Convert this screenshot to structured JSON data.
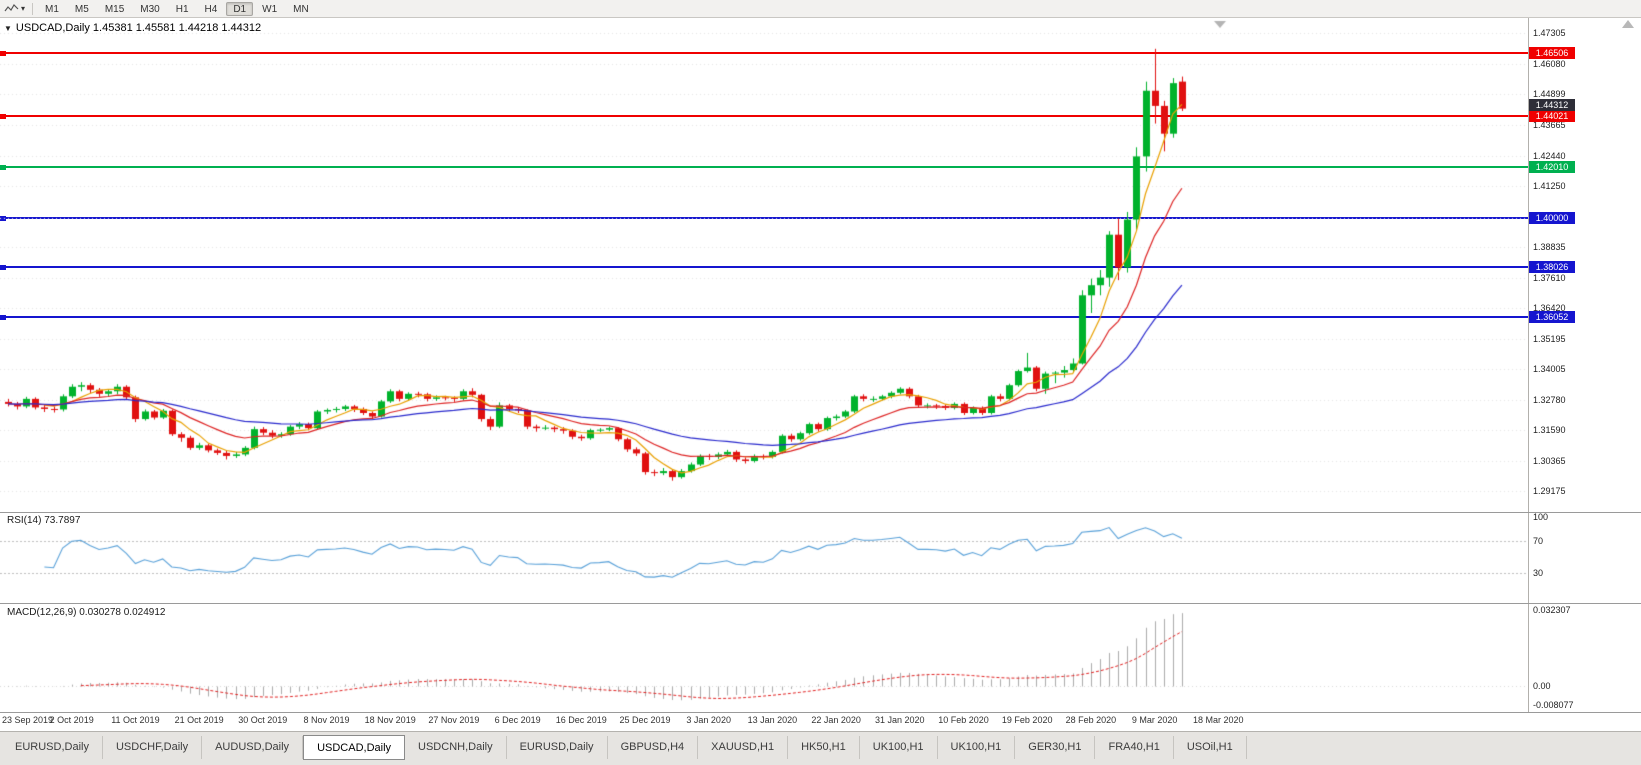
{
  "toolbar": {
    "timeframes": [
      "M1",
      "M5",
      "M15",
      "M30",
      "H1",
      "H4",
      "D1",
      "W1",
      "MN"
    ],
    "active_timeframe": "D1"
  },
  "chart": {
    "title": "USDCAD,Daily 1.45381 1.45581 1.44218 1.44312",
    "symbol": "USDCAD",
    "period": "Daily",
    "open": "1.45381",
    "high": "1.45581",
    "low": "1.44218",
    "close": "1.44312"
  },
  "price_axis": {
    "labels": [
      "1.47305",
      "1.46080",
      "1.44899",
      "1.43665",
      "1.42440",
      "1.41250",
      "1.40000",
      "1.38835",
      "1.37610",
      "1.36420",
      "1.35195",
      "1.34005",
      "1.32780",
      "1.31590",
      "1.30365",
      "1.29175"
    ]
  },
  "current_price_badge": {
    "text": "1.44312",
    "price": 1.44312,
    "bg": "#2e2e38"
  },
  "hlines": [
    {
      "price": 1.46506,
      "label": "1.46506",
      "color": "#f00000"
    },
    {
      "price": 1.44021,
      "label": "1.44021",
      "color": "#f00000"
    },
    {
      "price": 1.4201,
      "label": "1.42010",
      "color": "#00b050"
    },
    {
      "price": 1.4,
      "label": "1.40000",
      "color": "#1515cf"
    },
    {
      "price": 1.38026,
      "label": "1.38026",
      "color": "#1515cf"
    },
    {
      "price": 1.36052,
      "label": "1.36052",
      "color": "#1515cf"
    }
  ],
  "indicators": {
    "rsi": {
      "label": "RSI(14) 73.7897",
      "period": 14,
      "value": 73.7897,
      "axis_labels": [
        "100",
        "70",
        "30"
      ],
      "levels": [
        70,
        30
      ],
      "color": "#58a0d8"
    },
    "macd": {
      "label": "MACD(12,26,9) 0.030278 0.024912",
      "fast": 12,
      "slow": 26,
      "signal": 9,
      "value": 0.030278,
      "signal_value": 0.024912,
      "axis_labels": [
        "0.032307",
        "0.00",
        "-0.008077"
      ],
      "histogram_color": "#ababab",
      "signal_color": "#e02020"
    }
  },
  "date_axis": {
    "labels": [
      "23 Sep 2019",
      "2 Oct 2019",
      "11 Oct 2019",
      "21 Oct 2019",
      "30 Oct 2019",
      "8 Nov 2019",
      "18 Nov 2019",
      "27 Nov 2019",
      "6 Dec 2019",
      "16 Dec 2019",
      "25 Dec 2019",
      "3 Jan 2020",
      "13 Jan 2020",
      "22 Jan 2020",
      "31 Jan 2020",
      "10 Feb 2020",
      "19 Feb 2020",
      "28 Feb 2020",
      "9 Mar 2020",
      "18 Mar 2020"
    ]
  },
  "tabs": [
    {
      "label": "EURUSD,Daily"
    },
    {
      "label": "USDCHF,Daily"
    },
    {
      "label": "AUDUSD,Daily"
    },
    {
      "label": "USDCAD,Daily",
      "active": true
    },
    {
      "label": "USDCNH,Daily"
    },
    {
      "label": "EURUSD,Daily"
    },
    {
      "label": "GBPUSD,H4"
    },
    {
      "label": "XAUUSD,H1"
    },
    {
      "label": "HK50,H1"
    },
    {
      "label": "UK100,H1"
    },
    {
      "label": "UK100,H1"
    },
    {
      "label": "GER30,H1"
    },
    {
      "label": "FRA40,H1"
    },
    {
      "label": "USOil,H1"
    }
  ],
  "chart_data": {
    "type": "candlestick",
    "symbol": "USDCAD",
    "timeframe": "Daily",
    "view_price_range": [
      1.2834,
      1.479
    ],
    "up_color": "#00b22c",
    "down_color": "#e01010",
    "moving_averages": [
      {
        "period": 5,
        "method": "sma",
        "color": "#e8a000"
      },
      {
        "period": 13,
        "method": "ema",
        "color": "#dd2222"
      },
      {
        "period": 34,
        "method": "ema",
        "color": "#2727cc"
      }
    ],
    "candles": [
      [
        1.327,
        1.3282,
        1.3252,
        1.3262
      ],
      [
        1.3262,
        1.327,
        1.324,
        1.3252
      ],
      [
        1.3252,
        1.329,
        1.3245,
        1.3282
      ],
      [
        1.3282,
        1.3288,
        1.324,
        1.3248
      ],
      [
        1.3248,
        1.3258,
        1.323,
        1.3242
      ],
      [
        1.3242,
        1.3252,
        1.3228,
        1.324
      ],
      [
        1.324,
        1.33,
        1.3232,
        1.3292
      ],
      [
        1.3292,
        1.334,
        1.3285,
        1.333
      ],
      [
        1.333,
        1.3348,
        1.3312,
        1.3336
      ],
      [
        1.3336,
        1.3344,
        1.3305,
        1.3318
      ],
      [
        1.3318,
        1.3325,
        1.329,
        1.3302
      ],
      [
        1.3302,
        1.332,
        1.3292,
        1.3312
      ],
      [
        1.3312,
        1.334,
        1.33,
        1.333
      ],
      [
        1.333,
        1.3336,
        1.3278,
        1.3288
      ],
      [
        1.3288,
        1.3295,
        1.319,
        1.3202
      ],
      [
        1.3202,
        1.324,
        1.3196,
        1.3232
      ],
      [
        1.3232,
        1.3238,
        1.32,
        1.3208
      ],
      [
        1.3208,
        1.3242,
        1.3202,
        1.3235
      ],
      [
        1.3235,
        1.324,
        1.3135,
        1.3142
      ],
      [
        1.3142,
        1.315,
        1.3112,
        1.3128
      ],
      [
        1.3128,
        1.3136,
        1.308,
        1.3088
      ],
      [
        1.3088,
        1.3108,
        1.308,
        1.3098
      ],
      [
        1.3098,
        1.3104,
        1.307,
        1.3078
      ],
      [
        1.3078,
        1.3085,
        1.306,
        1.3068
      ],
      [
        1.3068,
        1.3076,
        1.3042,
        1.3056
      ],
      [
        1.3056,
        1.3072,
        1.3048,
        1.3062
      ],
      [
        1.3062,
        1.3095,
        1.3055,
        1.3088
      ],
      [
        1.3088,
        1.3172,
        1.3082,
        1.3162
      ],
      [
        1.3162,
        1.317,
        1.3138,
        1.3148
      ],
      [
        1.3148,
        1.3158,
        1.3126,
        1.3136
      ],
      [
        1.3136,
        1.315,
        1.3128,
        1.3142
      ],
      [
        1.3142,
        1.3178,
        1.3136,
        1.3172
      ],
      [
        1.3172,
        1.319,
        1.3162,
        1.3182
      ],
      [
        1.3182,
        1.3188,
        1.3158,
        1.3166
      ],
      [
        1.3166,
        1.3238,
        1.316,
        1.3232
      ],
      [
        1.3232,
        1.3244,
        1.3222,
        1.3238
      ],
      [
        1.3238,
        1.325,
        1.3228,
        1.3242
      ],
      [
        1.3242,
        1.3258,
        1.3234,
        1.3252
      ],
      [
        1.3252,
        1.3258,
        1.323,
        1.3242
      ],
      [
        1.3242,
        1.3248,
        1.3218,
        1.3226
      ],
      [
        1.3226,
        1.3232,
        1.3202,
        1.3212
      ],
      [
        1.3212,
        1.3278,
        1.3208,
        1.3272
      ],
      [
        1.3272,
        1.332,
        1.3266,
        1.3312
      ],
      [
        1.3312,
        1.3318,
        1.3272,
        1.3282
      ],
      [
        1.3282,
        1.3308,
        1.3276,
        1.3302
      ],
      [
        1.3302,
        1.331,
        1.3288,
        1.33
      ],
      [
        1.33,
        1.3306,
        1.3272,
        1.3282
      ],
      [
        1.3282,
        1.3296,
        1.3274,
        1.3288
      ],
      [
        1.3288,
        1.3294,
        1.3276,
        1.3286
      ],
      [
        1.3286,
        1.3292,
        1.327,
        1.3282
      ],
      [
        1.3282,
        1.332,
        1.3276,
        1.3312
      ],
      [
        1.3312,
        1.3324,
        1.3288,
        1.3298
      ],
      [
        1.3298,
        1.3302,
        1.3192,
        1.3202
      ],
      [
        1.3202,
        1.3212,
        1.3158,
        1.3172
      ],
      [
        1.3172,
        1.3268,
        1.3166,
        1.3256
      ],
      [
        1.3256,
        1.3262,
        1.3232,
        1.3242
      ],
      [
        1.3242,
        1.325,
        1.3226,
        1.3236
      ],
      [
        1.3236,
        1.324,
        1.3162,
        1.3172
      ],
      [
        1.3172,
        1.318,
        1.3152,
        1.3166
      ],
      [
        1.3166,
        1.3178,
        1.3158,
        1.3168
      ],
      [
        1.3168,
        1.3174,
        1.315,
        1.3162
      ],
      [
        1.3162,
        1.317,
        1.3144,
        1.3156
      ],
      [
        1.3156,
        1.3162,
        1.3122,
        1.3132
      ],
      [
        1.3132,
        1.314,
        1.3116,
        1.3126
      ],
      [
        1.3126,
        1.3164,
        1.312,
        1.3158
      ],
      [
        1.3158,
        1.3166,
        1.315,
        1.316
      ],
      [
        1.316,
        1.3172,
        1.3154,
        1.3166
      ],
      [
        1.3166,
        1.317,
        1.3114,
        1.3122
      ],
      [
        1.3122,
        1.3128,
        1.3072,
        1.3082
      ],
      [
        1.3082,
        1.309,
        1.3056,
        1.3066
      ],
      [
        1.3066,
        1.3072,
        1.2982,
        1.2992
      ],
      [
        1.2992,
        1.3002,
        1.2976,
        1.2988
      ],
      [
        1.2988,
        1.3008,
        1.298,
        1.2996
      ],
      [
        1.2996,
        1.3002,
        1.2958,
        1.2972
      ],
      [
        1.2972,
        1.3004,
        1.2966,
        1.2996
      ],
      [
        1.2996,
        1.303,
        1.299,
        1.3022
      ],
      [
        1.3022,
        1.3062,
        1.3016,
        1.3056
      ],
      [
        1.3056,
        1.3064,
        1.304,
        1.3052
      ],
      [
        1.3052,
        1.307,
        1.3044,
        1.3062
      ],
      [
        1.3062,
        1.308,
        1.3054,
        1.3072
      ],
      [
        1.3072,
        1.3078,
        1.3032,
        1.3042
      ],
      [
        1.3042,
        1.305,
        1.3026,
        1.3036
      ],
      [
        1.3036,
        1.3062,
        1.303,
        1.3056
      ],
      [
        1.3056,
        1.3062,
        1.3042,
        1.3052
      ],
      [
        1.3052,
        1.3078,
        1.3046,
        1.3072
      ],
      [
        1.3072,
        1.3142,
        1.3066,
        1.3136
      ],
      [
        1.3136,
        1.3144,
        1.3112,
        1.3122
      ],
      [
        1.3122,
        1.3152,
        1.3116,
        1.3146
      ],
      [
        1.3146,
        1.3188,
        1.314,
        1.3182
      ],
      [
        1.3182,
        1.3188,
        1.3152,
        1.3162
      ],
      [
        1.3162,
        1.3212,
        1.3156,
        1.3206
      ],
      [
        1.3206,
        1.322,
        1.3196,
        1.3212
      ],
      [
        1.3212,
        1.3238,
        1.3206,
        1.3232
      ],
      [
        1.3232,
        1.3298,
        1.3226,
        1.3292
      ],
      [
        1.3292,
        1.33,
        1.3272,
        1.3282
      ],
      [
        1.3282,
        1.3292,
        1.327,
        1.3282
      ],
      [
        1.3282,
        1.3298,
        1.3276,
        1.3292
      ],
      [
        1.3292,
        1.3312,
        1.3284,
        1.3306
      ],
      [
        1.3306,
        1.3328,
        1.33,
        1.3322
      ],
      [
        1.3322,
        1.3328,
        1.3284,
        1.3292
      ],
      [
        1.3292,
        1.3298,
        1.3248,
        1.3256
      ],
      [
        1.3256,
        1.3264,
        1.3244,
        1.3256
      ],
      [
        1.3256,
        1.3262,
        1.3242,
        1.3254
      ],
      [
        1.3254,
        1.326,
        1.3238,
        1.3246
      ],
      [
        1.3246,
        1.3268,
        1.324,
        1.3262
      ],
      [
        1.3262,
        1.3268,
        1.3218,
        1.3226
      ],
      [
        1.3226,
        1.3252,
        1.322,
        1.3246
      ],
      [
        1.3246,
        1.3252,
        1.3218,
        1.3226
      ],
      [
        1.3226,
        1.3298,
        1.322,
        1.3292
      ],
      [
        1.3292,
        1.3302,
        1.3272,
        1.3282
      ],
      [
        1.3282,
        1.3342,
        1.3276,
        1.3336
      ],
      [
        1.3336,
        1.3398,
        1.333,
        1.3392
      ],
      [
        1.3392,
        1.3464,
        1.3386,
        1.3406
      ],
      [
        1.3406,
        1.3412,
        1.3312,
        1.3322
      ],
      [
        1.3322,
        1.339,
        1.3302,
        1.3382
      ],
      [
        1.3382,
        1.3392,
        1.3344,
        1.3386
      ],
      [
        1.3386,
        1.3412,
        1.3366,
        1.3396
      ],
      [
        1.3396,
        1.3442,
        1.3386,
        1.3422
      ],
      [
        1.3422,
        1.3712,
        1.3418,
        1.3692
      ],
      [
        1.3692,
        1.3758,
        1.3622,
        1.3732
      ],
      [
        1.3732,
        1.3792,
        1.3692,
        1.3762
      ],
      [
        1.3762,
        1.3946,
        1.3726,
        1.3932
      ],
      [
        1.3932,
        1.3996,
        1.3752,
        1.3802
      ],
      [
        1.3802,
        1.4022,
        1.3782,
        1.3992
      ],
      [
        1.3992,
        1.4278,
        1.3952,
        1.4242
      ],
      [
        1.4242,
        1.4538,
        1.4182,
        1.4502
      ],
      [
        1.4502,
        1.4668,
        1.4372,
        1.4442
      ],
      [
        1.4442,
        1.4462,
        1.4262,
        1.4332
      ],
      [
        1.4332,
        1.4552,
        1.4316,
        1.4532
      ],
      [
        1.45381,
        1.45581,
        1.44218,
        1.44312
      ]
    ]
  }
}
